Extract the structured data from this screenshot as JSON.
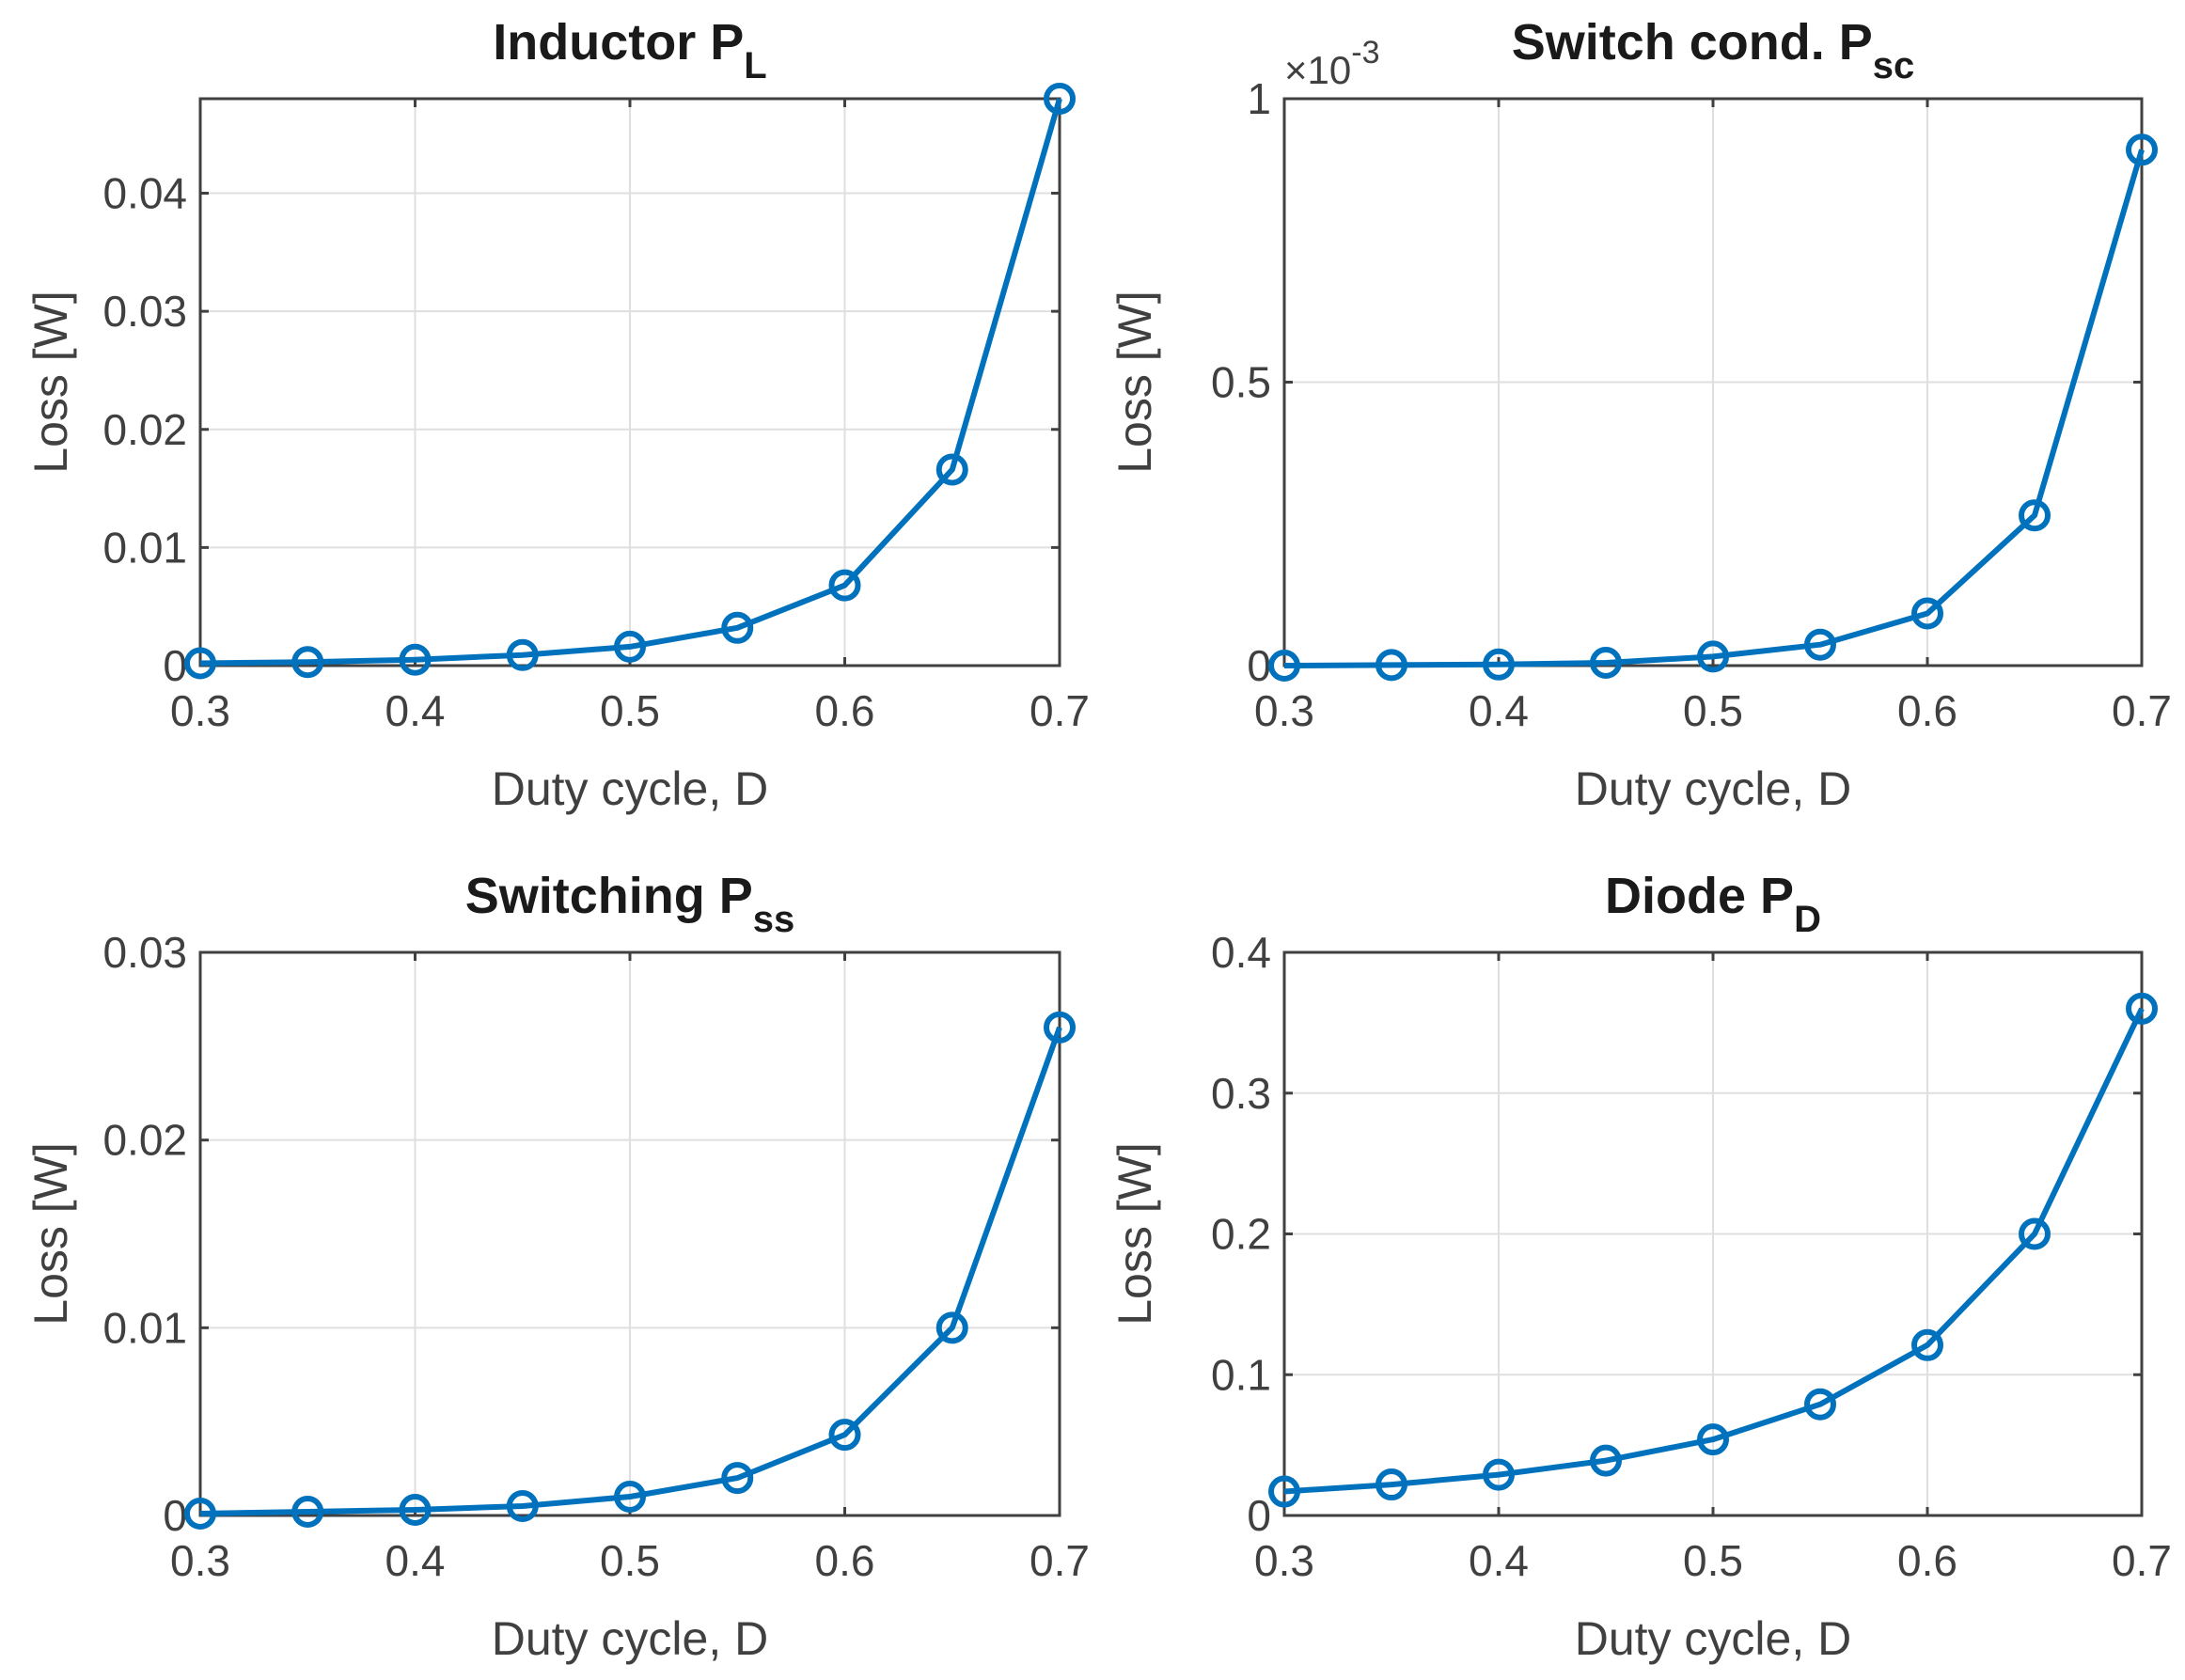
{
  "chart_data": [
    {
      "type": "line",
      "title": "Inductor P",
      "title_sub": "L",
      "xlabel": "Duty cycle, D",
      "ylabel": "Loss [W]",
      "x": [
        0.3,
        0.35,
        0.4,
        0.45,
        0.5,
        0.55,
        0.6,
        0.65,
        0.7
      ],
      "xticks": [
        0.3,
        0.4,
        0.5,
        0.6,
        0.7
      ],
      "xtick_labels": [
        "0.3",
        "0.4",
        "0.5",
        "0.6",
        "0.7"
      ],
      "xlim": [
        0.3,
        0.7
      ],
      "ylim": [
        0,
        0.048
      ],
      "yticks": [
        0,
        0.01,
        0.02,
        0.03,
        0.04
      ],
      "ytick_labels": [
        "0",
        "0.01",
        "0.02",
        "0.03",
        "0.04"
      ],
      "y_exponent": "",
      "grid": true,
      "series": [
        {
          "color": "#0072bd",
          "marker": "o",
          "values": [
            0.0002,
            0.0003,
            0.0005,
            0.0009,
            0.0016,
            0.0032,
            0.0068,
            0.0166,
            0.048
          ]
        }
      ]
    },
    {
      "type": "line",
      "title": "Switch cond. P",
      "title_sub": "sc",
      "xlabel": "Duty cycle, D",
      "ylabel": "Loss [W]",
      "x": [
        0.3,
        0.35,
        0.4,
        0.45,
        0.5,
        0.55,
        0.6,
        0.65,
        0.7
      ],
      "xticks": [
        0.3,
        0.4,
        0.5,
        0.6,
        0.7
      ],
      "xtick_labels": [
        "0.3",
        "0.4",
        "0.5",
        "0.6",
        "0.7"
      ],
      "xlim": [
        0.3,
        0.7
      ],
      "ylim": [
        0,
        1.0
      ],
      "yticks": [
        0,
        0.5,
        1
      ],
      "ytick_labels": [
        "0",
        "0.5",
        "1"
      ],
      "y_exponent": "×10-3",
      "y_exponent_base": "×10",
      "y_exponent_power": "-3",
      "grid": true,
      "series": [
        {
          "color": "#0072bd",
          "marker": "o",
          "values": [
            0.0,
            0.001,
            0.002,
            0.005,
            0.016,
            0.037,
            0.092,
            0.265,
            0.91
          ]
        }
      ]
    },
    {
      "type": "line",
      "title": "Switching P",
      "title_sub": "ss",
      "xlabel": "Duty cycle, D",
      "ylabel": "Loss [W]",
      "x": [
        0.3,
        0.35,
        0.4,
        0.45,
        0.5,
        0.55,
        0.6,
        0.65,
        0.7
      ],
      "xticks": [
        0.3,
        0.4,
        0.5,
        0.6,
        0.7
      ],
      "xtick_labels": [
        "0.3",
        "0.4",
        "0.5",
        "0.6",
        "0.7"
      ],
      "xlim": [
        0.3,
        0.7
      ],
      "ylim": [
        0,
        0.03
      ],
      "yticks": [
        0,
        0.01,
        0.02,
        0.03
      ],
      "ytick_labels": [
        "0",
        "0.01",
        "0.02",
        "0.03"
      ],
      "y_exponent": "",
      "grid": true,
      "series": [
        {
          "color": "#0072bd",
          "marker": "o",
          "values": [
            0.0001,
            0.0002,
            0.0003,
            0.0005,
            0.001,
            0.002,
            0.0043,
            0.01,
            0.026
          ]
        }
      ]
    },
    {
      "type": "line",
      "title": "Diode P",
      "title_sub": "D",
      "xlabel": "Duty cycle, D",
      "ylabel": "Loss [W]",
      "x": [
        0.3,
        0.35,
        0.4,
        0.45,
        0.5,
        0.55,
        0.6,
        0.65,
        0.7
      ],
      "xticks": [
        0.3,
        0.4,
        0.5,
        0.6,
        0.7
      ],
      "xtick_labels": [
        "0.3",
        "0.4",
        "0.5",
        "0.6",
        "0.7"
      ],
      "xlim": [
        0.3,
        0.7
      ],
      "ylim": [
        0,
        0.4
      ],
      "yticks": [
        0,
        0.1,
        0.2,
        0.3,
        0.4
      ],
      "ytick_labels": [
        "0",
        "0.1",
        "0.2",
        "0.3",
        "0.4"
      ],
      "y_exponent": "",
      "grid": true,
      "series": [
        {
          "color": "#0072bd",
          "marker": "o",
          "values": [
            0.017,
            0.022,
            0.029,
            0.039,
            0.054,
            0.079,
            0.121,
            0.2,
            0.36
          ]
        }
      ]
    }
  ]
}
